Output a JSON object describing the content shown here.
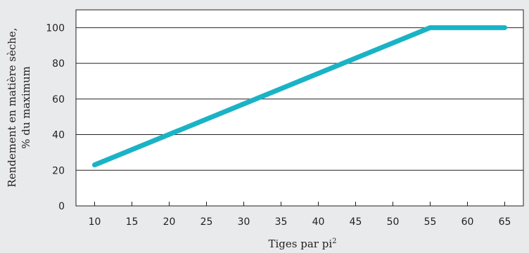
{
  "chart_data": {
    "type": "line",
    "title": "",
    "xlabel": "Tiges par pi",
    "xlabel_superscript": "2",
    "ylabel_lines": [
      "Rendement en matière sèche,",
      "% du maximum"
    ],
    "x_ticks": [
      10,
      15,
      20,
      25,
      30,
      35,
      40,
      45,
      50,
      55,
      60,
      65
    ],
    "y_ticks": [
      0,
      20,
      40,
      60,
      80,
      100
    ],
    "xlim": [
      7.5,
      67.5
    ],
    "ylim": [
      0,
      110
    ],
    "grid": "horizontal",
    "line_color": "#1ab3c6",
    "series": [
      {
        "x": [
          10,
          55,
          65
        ],
        "y": [
          23,
          100,
          100
        ]
      }
    ]
  }
}
